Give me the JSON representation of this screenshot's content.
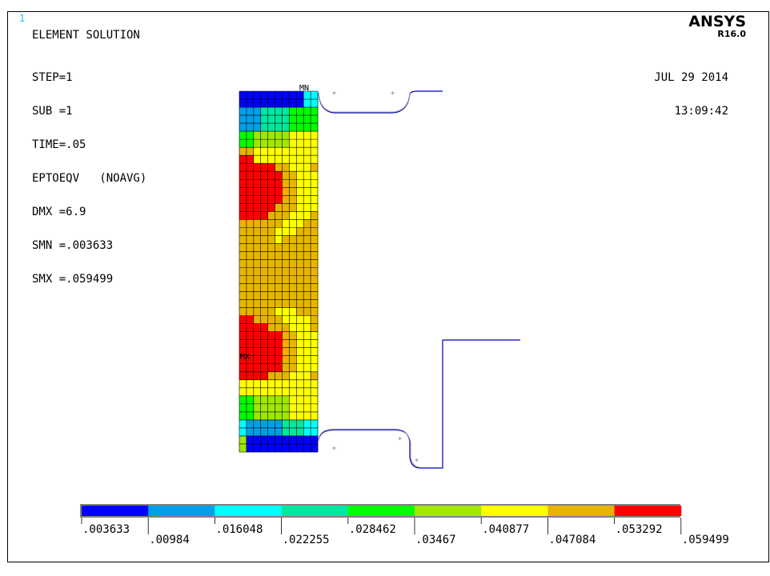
{
  "window_number": "1",
  "title": "ELEMENT SOLUTION",
  "info_lines": [
    "STEP=1",
    "SUB =1",
    "TIME=.05",
    "EPTOEQV   (NOAVG)",
    "DMX =6.9",
    "SMN =.003633",
    "SMX =.059499"
  ],
  "date": "JUL 29 2014",
  "time": "13:09:42",
  "logo": {
    "name": "ANSYS",
    "revision": "R16.0"
  },
  "labels": {
    "min": "MN",
    "max": "MX"
  },
  "legend": {
    "colors": [
      "#0000ff",
      "#00a0e8",
      "#00ffff",
      "#00e8a0",
      "#00ff00",
      "#a0e800",
      "#ffff00",
      "#e8b400",
      "#ff0000"
    ],
    "ticks": [
      ".003633",
      ".00984",
      ".016048",
      ".022255",
      ".028462",
      ".03467",
      ".040877",
      ".047084",
      ".053292",
      ".059499"
    ]
  }
}
